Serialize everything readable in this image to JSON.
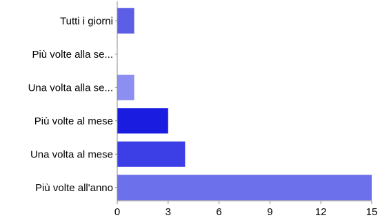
{
  "chart_data": {
    "type": "bar",
    "orientation": "horizontal",
    "categories": [
      "Tutti i giorni",
      "Più volte alla se...",
      "Una volta alla se...",
      "Più volte al mese",
      "Una volta al mese",
      "Più volte all'anno"
    ],
    "values": [
      1,
      0,
      1,
      3,
      4,
      15
    ],
    "bar_colors": [
      "#5c5ee6",
      "#5c5ee6",
      "#8c8ef2",
      "#1a1ce0",
      "#3c3ee6",
      "#6c70ea"
    ],
    "xlim": [
      0,
      15
    ],
    "xticks": [
      0,
      3,
      6,
      9,
      12,
      15
    ],
    "title": "",
    "xlabel": "",
    "ylabel": "",
    "grid": false,
    "legend": "none"
  }
}
